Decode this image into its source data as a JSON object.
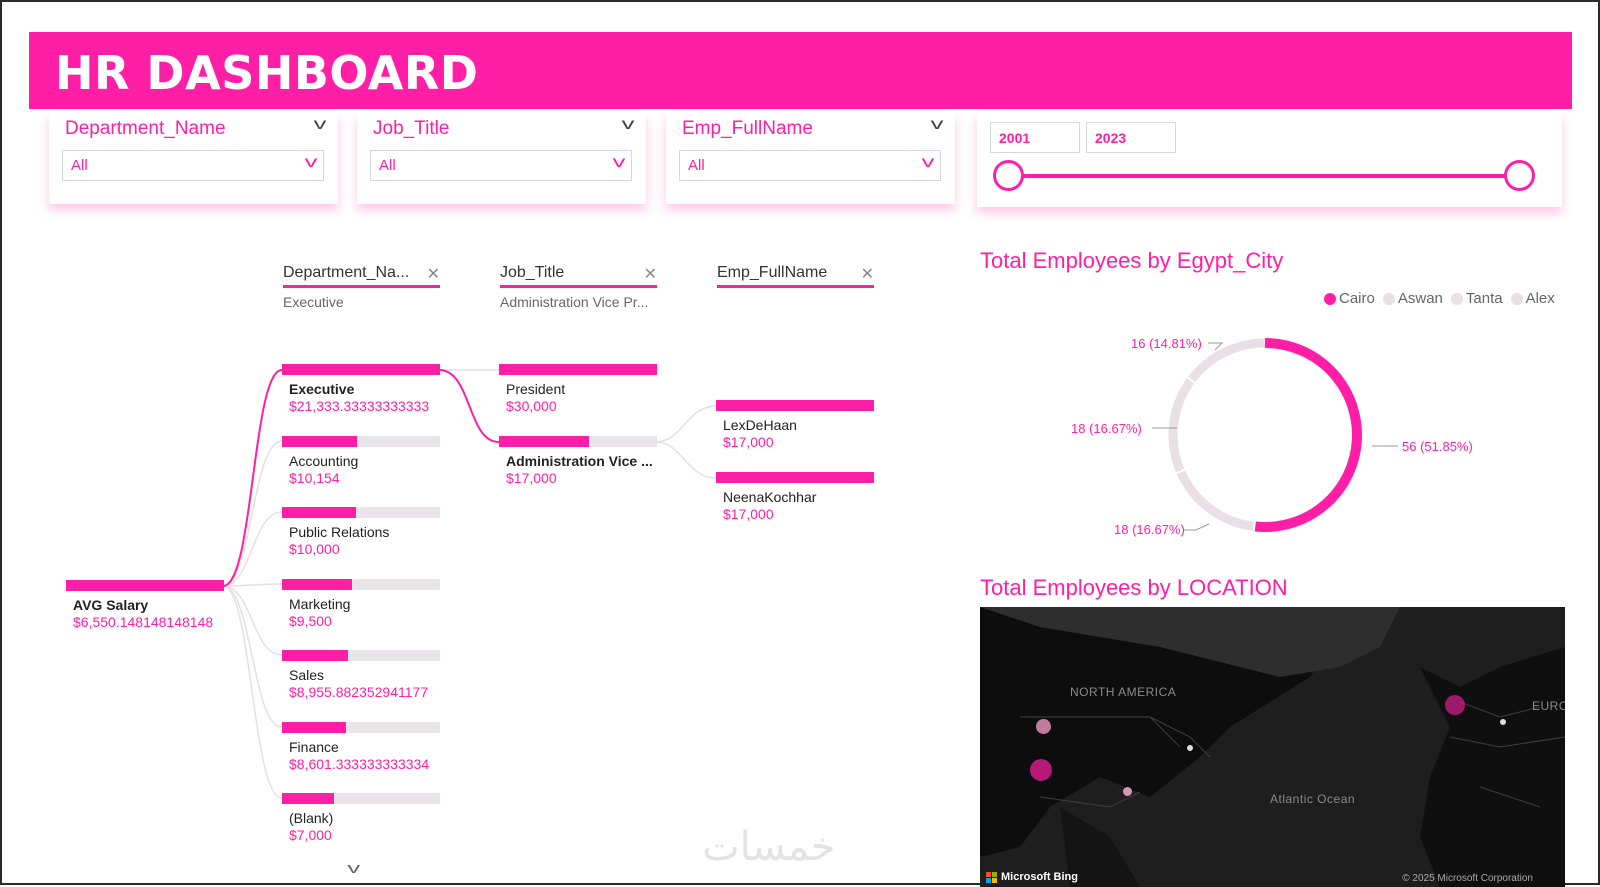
{
  "header": {
    "title": "HR DASHBOARD"
  },
  "slicers": [
    {
      "title": "Department_Name",
      "value": "All"
    },
    {
      "title": "Job_Title",
      "value": "All"
    },
    {
      "title": "Emp_FullName",
      "value": "All"
    }
  ],
  "date_slicer": {
    "start": "2001",
    "end": "2023"
  },
  "decomposition_tree": {
    "levels": [
      {
        "name": "Department_Na...",
        "selected": "Executive"
      },
      {
        "name": "Job_Title",
        "selected": "Administration Vice Pr..."
      },
      {
        "name": "Emp_FullName",
        "selected": ""
      }
    ],
    "root": {
      "label": "AVG Salary",
      "value": "$6,550.148148148148",
      "fill": 1.0
    },
    "departments": [
      {
        "label": "Executive",
        "value": "$21,333.33333333333",
        "fill": 1.0,
        "bold": true
      },
      {
        "label": "Accounting",
        "value": "$10,154",
        "fill": 0.476,
        "bold": false
      },
      {
        "label": "Public Relations",
        "value": "$10,000",
        "fill": 0.469,
        "bold": false
      },
      {
        "label": "Marketing",
        "value": "$9,500",
        "fill": 0.445,
        "bold": false
      },
      {
        "label": "Sales",
        "value": "$8,955.882352941177",
        "fill": 0.42,
        "bold": false
      },
      {
        "label": "Finance",
        "value": "$8,601.333333333334",
        "fill": 0.403,
        "bold": false
      },
      {
        "label": "(Blank)",
        "value": "$7,000",
        "fill": 0.328,
        "bold": false
      }
    ],
    "job_titles": [
      {
        "label": "President",
        "value": "$30,000",
        "fill": 1.0,
        "bold": false
      },
      {
        "label": "Administration Vice ...",
        "value": "$17,000",
        "fill": 0.567,
        "bold": true
      }
    ],
    "employees": [
      {
        "label": "LexDeHaan",
        "value": "$17,000",
        "fill": 1.0
      },
      {
        "label": "NeenaKochhar",
        "value": "$17,000",
        "fill": 1.0
      }
    ]
  },
  "pie_chart": {
    "title": "Total Employees by Egypt_City",
    "legend": [
      "Cairo",
      "Aswan",
      "Tanta",
      "Alex"
    ],
    "colors": [
      "#ff1fa6",
      "#e8e0e4",
      "#e8e0e4",
      "#e8e0e4"
    ],
    "chart_data": {
      "type": "pie",
      "categories": [
        "Cairo",
        "Aswan",
        "Tanta",
        "Alex"
      ],
      "values": [
        56,
        18,
        18,
        16
      ],
      "labels": [
        "56 (51.85%)",
        "18 (16.67%)",
        "18 (16.67%)",
        "16 (14.81%)"
      ]
    }
  },
  "map": {
    "title": "Total Employees by LOCATION",
    "labels": {
      "north_america": "NORTH AMERICA",
      "atlantic": "Atlantic Ocean",
      "europe": "EURO"
    },
    "attribution": "Microsoft Bing",
    "copyright": "© 2025 Microsoft Corporation"
  },
  "watermark": "خمسات"
}
